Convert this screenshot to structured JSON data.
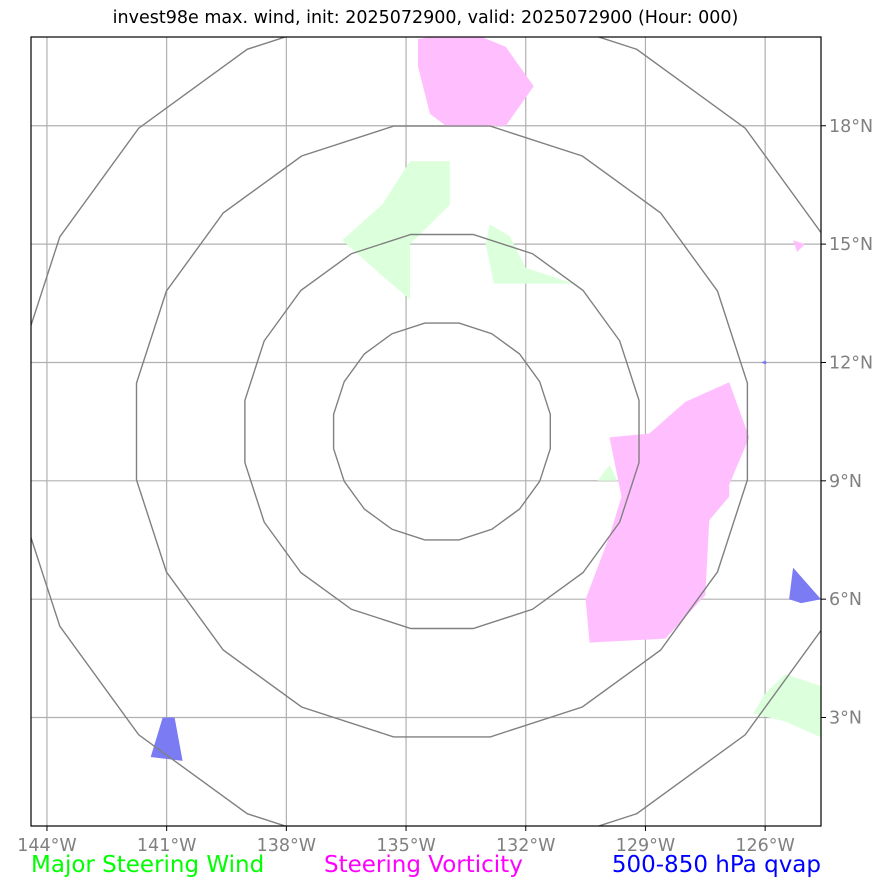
{
  "title": "invest98e max. wind, init: 2025072900, valid: 2025072900 (Hour: 000)",
  "map": {
    "lon_range": [
      -144.4,
      -124.6
    ],
    "lat_range": [
      0.25,
      20.25
    ],
    "lon_ticks": [
      {
        "value": -144,
        "label": "144°W"
      },
      {
        "value": -141,
        "label": "141°W"
      },
      {
        "value": -138,
        "label": "138°W"
      },
      {
        "value": -135,
        "label": "135°W"
      },
      {
        "value": -132,
        "label": "132°W"
      },
      {
        "value": -129,
        "label": "129°W"
      },
      {
        "value": -126,
        "label": "126°W"
      }
    ],
    "lat_ticks": [
      {
        "value": 3,
        "label": "3°N"
      },
      {
        "value": 6,
        "label": "6°N"
      },
      {
        "value": 9,
        "label": "9°N"
      },
      {
        "value": 12,
        "label": "12°N"
      },
      {
        "value": 15,
        "label": "15°N"
      },
      {
        "value": 18,
        "label": "18°N"
      }
    ],
    "range_rings": {
      "center": [
        -134.1,
        10.25
      ],
      "radii_deg": [
        2.75,
        5.0,
        7.75,
        10.75
      ]
    },
    "colors": {
      "grid": "#b0b0b0",
      "ring": "#808080",
      "steering_wind": "#dcffdc",
      "vorticity": "#ffbfff",
      "qvap": "#7b7bf4"
    },
    "regions": {
      "steering_wind": [
        [
          [
            -134.9,
            17.1
          ],
          [
            -133.9,
            17.1
          ],
          [
            -133.9,
            16.0
          ],
          [
            -134.9,
            15.0
          ],
          [
            -134.9,
            13.6
          ],
          [
            -135.6,
            14.2
          ],
          [
            -136.6,
            15.1
          ],
          [
            -135.6,
            16.0
          ]
        ],
        [
          [
            -132.9,
            15.5
          ],
          [
            -132.4,
            15.2
          ],
          [
            -132.0,
            14.4
          ],
          [
            -130.8,
            14.0
          ],
          [
            -132.8,
            14.0
          ],
          [
            -133.0,
            15.0
          ]
        ],
        [
          [
            -129.9,
            9.4
          ],
          [
            -130.2,
            9.0
          ],
          [
            -129.7,
            9.0
          ]
        ],
        [
          [
            -125.5,
            4.1
          ],
          [
            -124.6,
            3.8
          ],
          [
            -124.6,
            2.5
          ],
          [
            -125.5,
            2.9
          ],
          [
            -126.3,
            3.1
          ],
          [
            -126.0,
            3.6
          ]
        ]
      ],
      "vorticity": [
        [
          [
            -134.4,
            20.25
          ],
          [
            -133.1,
            20.25
          ],
          [
            -132.5,
            20.0
          ],
          [
            -131.8,
            19.0
          ],
          [
            -132.5,
            18.0
          ],
          [
            -134.0,
            18.0
          ],
          [
            -134.4,
            18.3
          ],
          [
            -134.7,
            19.5
          ],
          [
            -134.7,
            20.2
          ]
        ],
        [
          [
            -129.9,
            10.1
          ],
          [
            -128.9,
            10.2
          ],
          [
            -128.0,
            11.0
          ],
          [
            -126.9,
            11.5
          ],
          [
            -126.4,
            10.1
          ],
          [
            -126.9,
            8.9
          ],
          [
            -126.9,
            8.6
          ],
          [
            -127.4,
            8.0
          ],
          [
            -127.5,
            6.1
          ],
          [
            -128.5,
            5.0
          ],
          [
            -130.4,
            4.9
          ],
          [
            -130.5,
            6.0
          ],
          [
            -129.9,
            7.6
          ],
          [
            -129.6,
            8.6
          ]
        ],
        [
          [
            -125.3,
            15.1
          ],
          [
            -125.0,
            15.0
          ],
          [
            -125.2,
            14.8
          ]
        ]
      ],
      "qvap": [
        [
          [
            -141.1,
            3.0
          ],
          [
            -140.8,
            3.0
          ],
          [
            -140.6,
            1.9
          ],
          [
            -141.4,
            2.0
          ]
        ],
        [
          [
            -125.3,
            6.8
          ],
          [
            -124.6,
            6.0
          ],
          [
            -125.1,
            5.9
          ],
          [
            -125.4,
            6.0
          ]
        ],
        [
          [
            -126.1,
            12.0
          ],
          [
            -126.0,
            12.05
          ],
          [
            -125.95,
            12.0
          ],
          [
            -126.0,
            11.95
          ]
        ]
      ]
    }
  },
  "legend": [
    {
      "label": "Major Steering Wind",
      "color": "#00ff00"
    },
    {
      "label": "Steering Vorticity",
      "color": "#ff00ff"
    },
    {
      "label": "500-850 hPa qvap",
      "color": "#0000ff"
    }
  ]
}
